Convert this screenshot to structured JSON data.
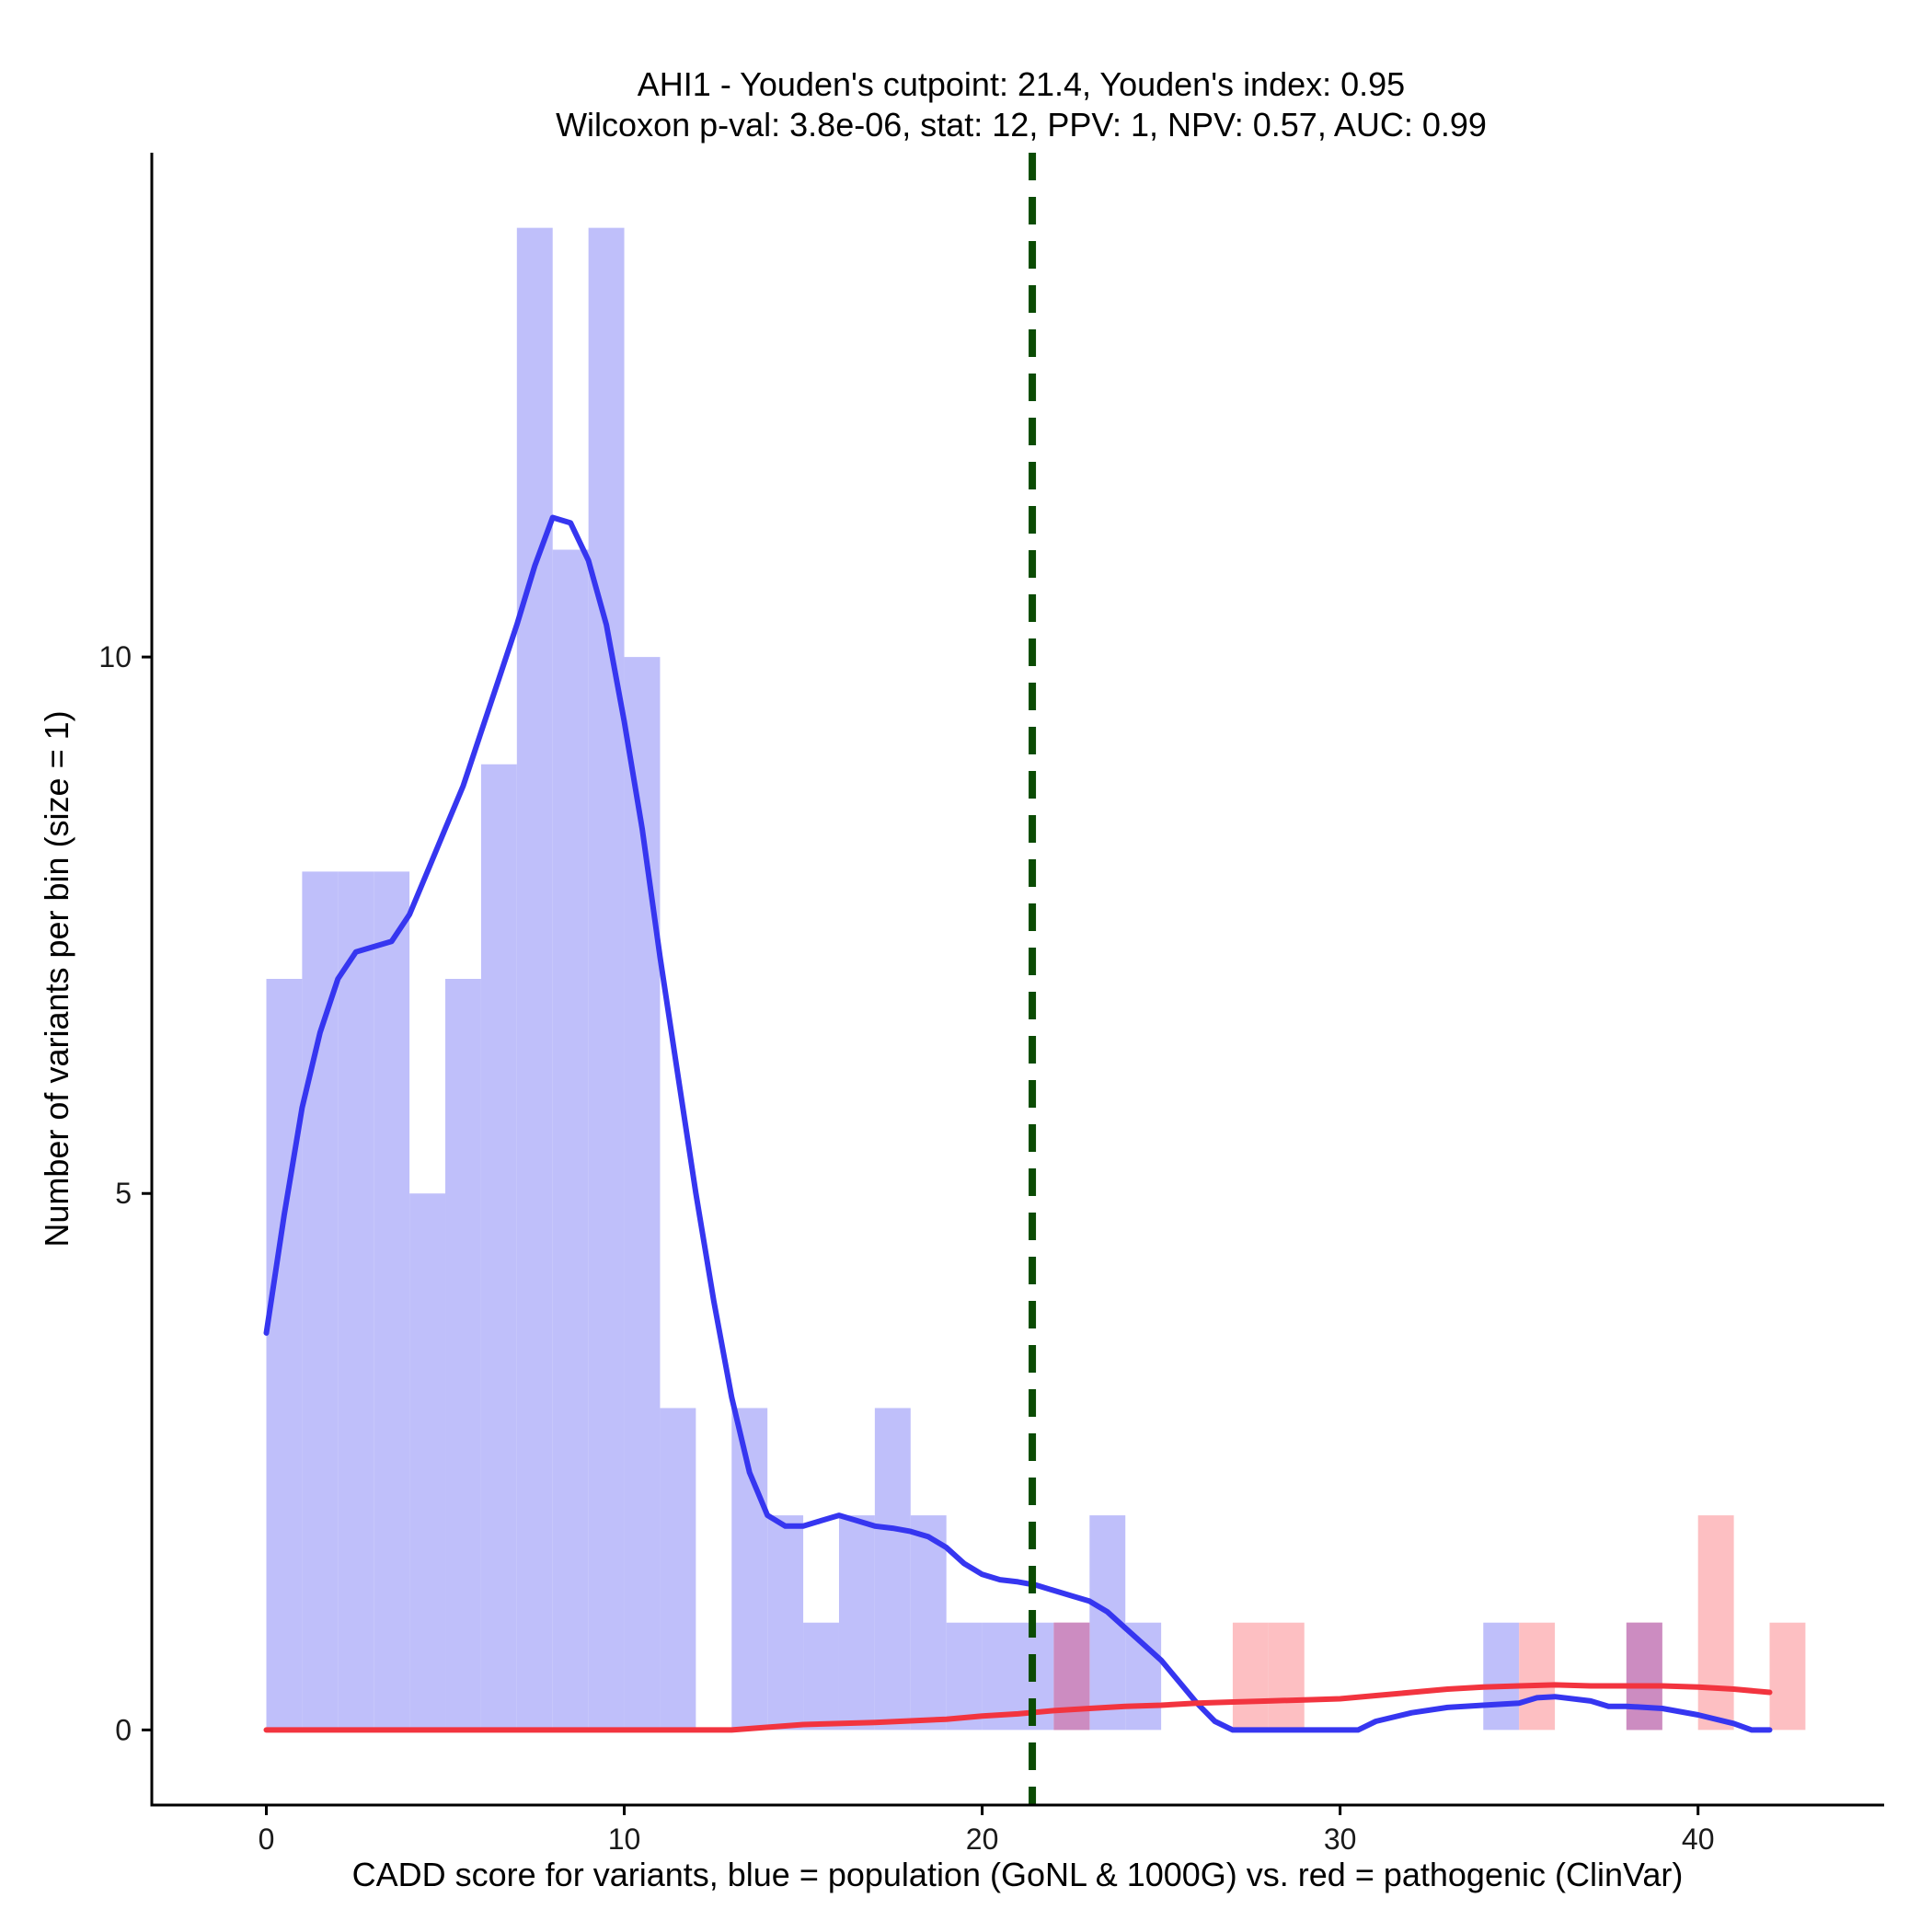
{
  "chart_data": {
    "type": "histogram",
    "title_line1": "AHI1 - Youden's cutpoint: 21.4, Youden's index: 0.95",
    "title_line2": "Wilcoxon p-val: 3.8e-06, stat: 12, PPV: 1, NPV: 0.57, AUC: 0.99",
    "xlabel": "CADD score for variants, blue = population (GoNL & 1000G) vs. red = pathogenic (ClinVar)",
    "ylabel": "Number of variants per bin (size = 1)",
    "xlim": [
      -3.2,
      45.2
    ],
    "ylim": [
      -0.7,
      14.7
    ],
    "x_ticks": [
      0,
      10,
      20,
      30,
      40
    ],
    "x_tick_labels": [
      "0",
      "10",
      "20",
      "30",
      "40"
    ],
    "y_ticks": [
      0,
      5,
      10
    ],
    "y_tick_labels": [
      "0",
      "5",
      "10"
    ],
    "bin_size": 1,
    "cutpoint": 21.4,
    "colors": {
      "population_fill": "#bfbffa",
      "pathogenic_fill": "#fdbfc2",
      "overlap_fill": "#cc8cc1",
      "population_line": "#3636f0",
      "pathogenic_line": "#f2343f",
      "cutpoint_line": "#0b4b04"
    },
    "series": [
      {
        "name": "population (GoNL & 1000G)",
        "bins": [
          [
            0,
            7
          ],
          [
            1,
            8
          ],
          [
            2,
            8
          ],
          [
            3,
            8
          ],
          [
            4,
            5
          ],
          [
            5,
            7
          ],
          [
            6,
            9
          ],
          [
            7,
            14
          ],
          [
            8,
            11
          ],
          [
            9,
            14
          ],
          [
            10,
            10
          ],
          [
            11,
            3
          ],
          [
            13,
            3
          ],
          [
            14,
            2
          ],
          [
            15,
            1
          ],
          [
            16,
            2
          ],
          [
            17,
            3
          ],
          [
            18,
            2
          ],
          [
            19,
            1
          ],
          [
            20,
            1
          ],
          [
            21,
            1
          ],
          [
            22,
            1
          ],
          [
            23,
            2
          ],
          [
            24,
            1
          ],
          [
            34,
            1
          ],
          [
            38,
            1
          ]
        ],
        "density": [
          [
            0,
            3.7
          ],
          [
            0.5,
            4.8
          ],
          [
            1,
            5.8
          ],
          [
            1.5,
            6.5
          ],
          [
            2,
            7.0
          ],
          [
            2.5,
            7.25
          ],
          [
            3,
            7.3
          ],
          [
            3.5,
            7.35
          ],
          [
            4,
            7.6
          ],
          [
            4.5,
            8.0
          ],
          [
            5,
            8.4
          ],
          [
            5.5,
            8.8
          ],
          [
            6,
            9.3
          ],
          [
            6.5,
            9.8
          ],
          [
            7,
            10.3
          ],
          [
            7.5,
            10.85
          ],
          [
            8,
            11.3
          ],
          [
            8.5,
            11.25
          ],
          [
            9,
            10.9
          ],
          [
            9.5,
            10.3
          ],
          [
            10,
            9.4
          ],
          [
            10.5,
            8.4
          ],
          [
            11,
            7.2
          ],
          [
            11.5,
            6.1
          ],
          [
            12,
            5.0
          ],
          [
            12.5,
            4.0
          ],
          [
            13,
            3.1
          ],
          [
            13.5,
            2.4
          ],
          [
            14,
            2.0
          ],
          [
            14.5,
            1.9
          ],
          [
            15,
            1.9
          ],
          [
            15.5,
            1.95
          ],
          [
            16,
            2.0
          ],
          [
            16.5,
            1.95
          ],
          [
            17,
            1.9
          ],
          [
            17.5,
            1.88
          ],
          [
            18,
            1.85
          ],
          [
            18.5,
            1.8
          ],
          [
            19,
            1.7
          ],
          [
            19.5,
            1.55
          ],
          [
            20,
            1.45
          ],
          [
            20.5,
            1.4
          ],
          [
            21,
            1.38
          ],
          [
            21.5,
            1.35
          ],
          [
            22,
            1.3
          ],
          [
            22.5,
            1.25
          ],
          [
            23,
            1.2
          ],
          [
            23.5,
            1.1
          ],
          [
            24,
            0.95
          ],
          [
            24.5,
            0.8
          ],
          [
            25,
            0.65
          ],
          [
            25.5,
            0.45
          ],
          [
            26,
            0.25
          ],
          [
            26.5,
            0.08
          ],
          [
            27,
            0.0
          ],
          [
            28,
            0.0
          ],
          [
            29,
            0.0
          ],
          [
            30,
            0.0
          ],
          [
            30.5,
            0.0
          ],
          [
            31,
            0.08
          ],
          [
            32,
            0.16
          ],
          [
            33,
            0.21
          ],
          [
            34,
            0.23
          ],
          [
            35,
            0.25
          ],
          [
            35.5,
            0.3
          ],
          [
            36,
            0.31
          ],
          [
            37,
            0.27
          ],
          [
            37.5,
            0.22
          ],
          [
            38,
            0.22
          ],
          [
            39,
            0.2
          ],
          [
            40,
            0.14
          ],
          [
            41,
            0.06
          ],
          [
            41.5,
            0.0
          ],
          [
            42,
            0.0
          ]
        ]
      },
      {
        "name": "pathogenic (ClinVar)",
        "bins": [
          [
            22,
            1
          ],
          [
            27,
            1
          ],
          [
            28,
            1
          ],
          [
            35,
            1
          ],
          [
            38,
            1
          ],
          [
            40,
            2
          ],
          [
            42,
            1
          ]
        ],
        "density": [
          [
            0,
            0.0
          ],
          [
            5,
            0.0
          ],
          [
            10,
            0.0
          ],
          [
            13,
            0.0
          ],
          [
            15,
            0.05
          ],
          [
            17,
            0.07
          ],
          [
            19,
            0.1
          ],
          [
            20,
            0.13
          ],
          [
            21,
            0.15
          ],
          [
            22,
            0.18
          ],
          [
            23,
            0.2
          ],
          [
            24,
            0.22
          ],
          [
            25,
            0.23
          ],
          [
            26,
            0.25
          ],
          [
            27,
            0.26
          ],
          [
            28,
            0.27
          ],
          [
            29,
            0.28
          ],
          [
            30,
            0.29
          ],
          [
            31,
            0.32
          ],
          [
            32,
            0.35
          ],
          [
            33,
            0.38
          ],
          [
            34,
            0.4
          ],
          [
            35,
            0.41
          ],
          [
            36,
            0.42
          ],
          [
            37,
            0.41
          ],
          [
            38,
            0.41
          ],
          [
            39,
            0.41
          ],
          [
            40,
            0.4
          ],
          [
            41,
            0.38
          ],
          [
            42,
            0.35
          ]
        ]
      }
    ]
  }
}
